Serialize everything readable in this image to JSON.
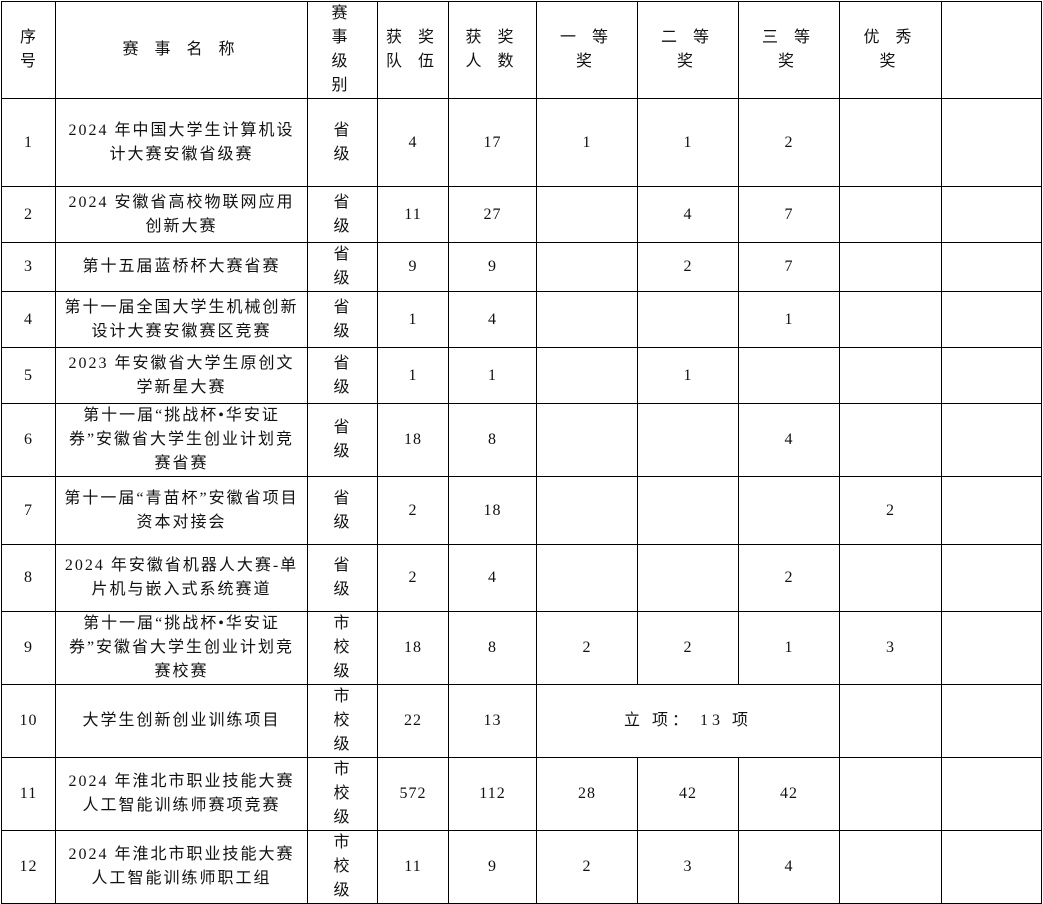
{
  "headers": [
    "序号",
    "赛事名称",
    "赛事级别",
    "获奖队伍",
    "获奖人数",
    "一等奖",
    "二等奖",
    "三等奖",
    "优秀奖",
    ""
  ],
  "header_display": {
    "seq": [
      "序",
      "号"
    ],
    "name": "赛 事 名 称",
    "level": [
      "赛 事",
      "级 别"
    ],
    "teams": [
      "获 奖",
      "队 伍"
    ],
    "people": [
      "获 奖",
      "人 数"
    ],
    "first": "一 等 奖",
    "second": "二 等 奖",
    "third": "三 等 奖",
    "excellent": "优 秀 奖"
  },
  "rows": [
    {
      "seq": "1",
      "name": "2024 年中国大学生计算机设计大赛安徽省级赛",
      "level": "省 级",
      "teams": "4",
      "people": "17",
      "first": "1",
      "second": "1",
      "third": "2",
      "excellent": ""
    },
    {
      "seq": "2",
      "name": "2024 安徽省高校物联网应用创新大赛",
      "level": "省 级",
      "teams": "11",
      "people": "27",
      "first": "",
      "second": "4",
      "third": "7",
      "excellent": ""
    },
    {
      "seq": "3",
      "name": "第十五届蓝桥杯大赛省赛",
      "level": "省 级",
      "teams": "9",
      "people": "9",
      "first": "",
      "second": "2",
      "third": "7",
      "excellent": ""
    },
    {
      "seq": "4",
      "name": "第十一届全国大学生机械创新设计大赛安徽赛区竞赛",
      "level": "省 级",
      "teams": "1",
      "people": "4",
      "first": "",
      "second": "",
      "third": "1",
      "excellent": ""
    },
    {
      "seq": "5",
      "name": "2023 年安徽省大学生原创文学新星大赛",
      "level": "省 级",
      "teams": "1",
      "people": "1",
      "first": "",
      "second": "1",
      "third": "",
      "excellent": ""
    },
    {
      "seq": "6",
      "name": "第十一届“挑战杯•华安证券”安徽省大学生创业计划竞赛省赛",
      "level": "省 级",
      "teams": "18",
      "people": "8",
      "first": "",
      "second": "",
      "third": "4",
      "excellent": ""
    },
    {
      "seq": "7",
      "name": "第十一届“青苗杯”安徽省项目资本对接会",
      "level": "省 级",
      "teams": "2",
      "people": "18",
      "first": "",
      "second": "",
      "third": "",
      "excellent": "2"
    },
    {
      "seq": "8",
      "name": "2024 年安徽省机器人大赛-单片机与嵌入式系统赛道",
      "level": "省 级",
      "teams": "2",
      "people": "4",
      "first": "",
      "second": "",
      "third": "2",
      "excellent": ""
    },
    {
      "seq": "9",
      "name": "第十一届“挑战杯•华安证券”安徽省大学生创业计划竞赛校赛",
      "level": "市 校 级",
      "teams": "18",
      "people": "8",
      "first": "2",
      "second": "2",
      "third": "1",
      "excellent": "3"
    },
    {
      "seq": "10",
      "name": "大学生创新创业训练项目",
      "level": "市 校 级",
      "teams": "22",
      "people": "13",
      "merged": "立 项： 13 项",
      "excellent": ""
    },
    {
      "seq": "11",
      "name": "2024 年淮北市职业技能大赛人工智能训练师赛项竞赛",
      "level": "市 校 级",
      "teams": "572",
      "people": "112",
      "first": "28",
      "second": "42",
      "third": "42",
      "excellent": ""
    },
    {
      "seq": "12",
      "name": "2024 年淮北市职业技能大赛人工智能训练师职工组",
      "level": "市 校 级",
      "teams": "11",
      "people": "9",
      "first": "2",
      "second": "3",
      "third": "4",
      "excellent": ""
    }
  ]
}
